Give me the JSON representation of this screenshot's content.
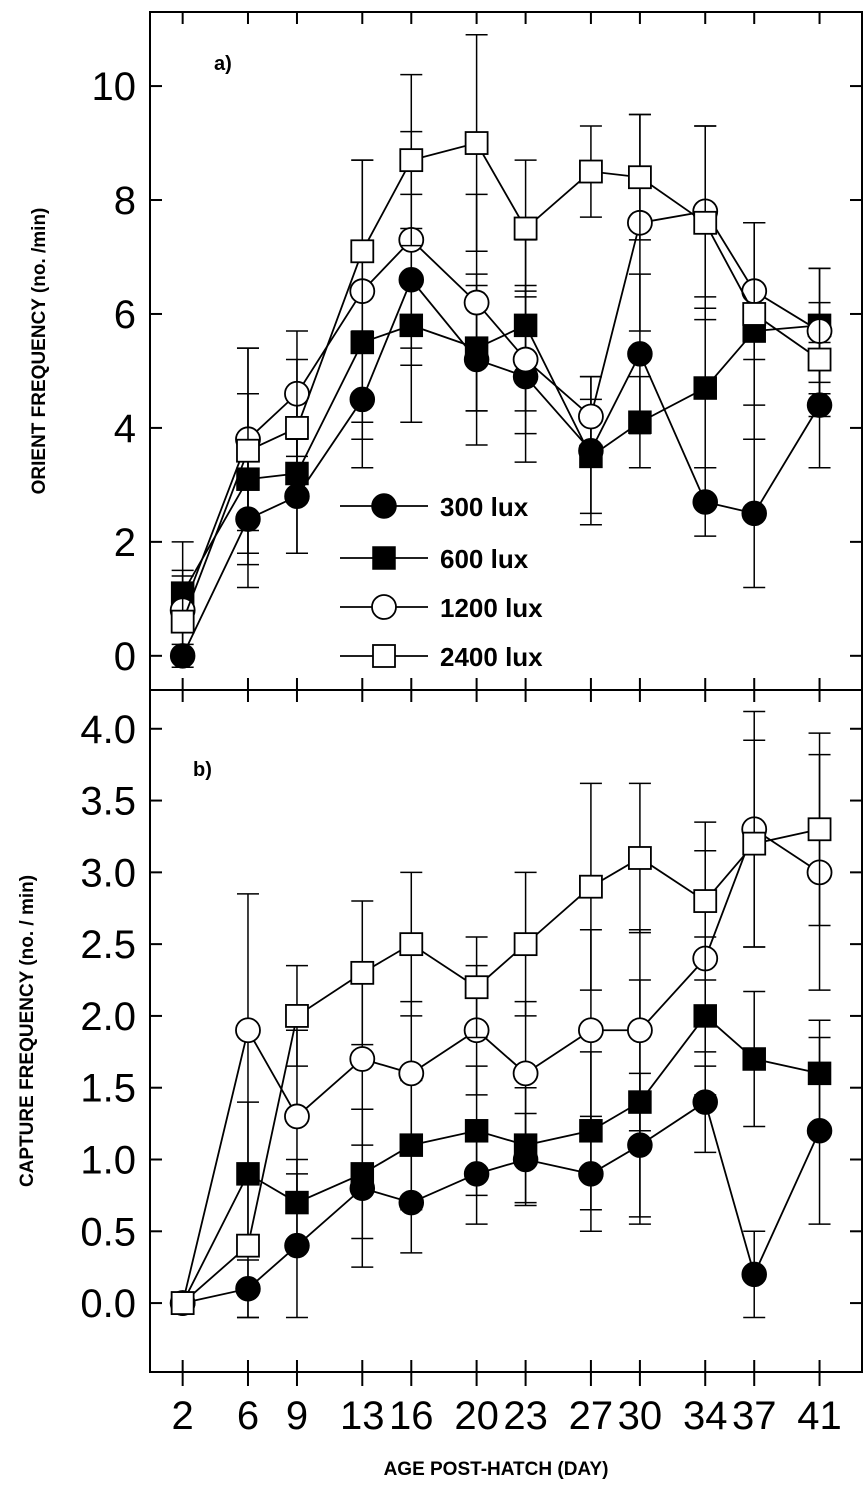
{
  "chart_data": [
    {
      "type": "line",
      "panel_label": "a)",
      "ylabel": "ORIENT FREQUENCY (no. /min)",
      "xlabel": "",
      "ylim": [
        -0.6,
        11.3
      ],
      "yticks": [
        0,
        2,
        4,
        6,
        8,
        10
      ],
      "x": [
        2,
        6,
        9,
        13,
        16,
        20,
        23,
        27,
        30,
        34,
        37,
        41
      ],
      "legend": "center-left, inside",
      "series": [
        {
          "name": "300 lux",
          "marker": "filled-circle",
          "values": [
            0.0,
            2.4,
            2.8,
            4.5,
            6.6,
            5.2,
            4.9,
            3.6,
            5.3,
            2.7,
            2.5,
            4.4
          ],
          "err": [
            0.0,
            1.2,
            1.0,
            1.2,
            1.5,
            1.5,
            1.5,
            1.3,
            1.4,
            0.6,
            1.3,
            1.1
          ]
        },
        {
          "name": "600 lux",
          "marker": "filled-square",
          "values": [
            1.1,
            3.1,
            3.2,
            5.5,
            5.8,
            5.4,
            5.8,
            3.5,
            4.1,
            4.7,
            5.7,
            5.8
          ],
          "err": [
            0.9,
            1.5,
            1.4,
            1.7,
            1.7,
            1.1,
            1.5,
            1.0,
            0.8,
            1.4,
            1.9,
            1.0
          ]
        },
        {
          "name": "1200 lux",
          "marker": "open-circle",
          "values": [
            0.8,
            3.8,
            4.6,
            6.4,
            7.3,
            6.2,
            5.2,
            4.2,
            7.6,
            7.8,
            6.4,
            5.7
          ],
          "err": [
            0.7,
            1.6,
            1.1,
            2.3,
            1.9,
            1.9,
            1.3,
            0.7,
            1.9,
            1.5,
            1.2,
            1.1
          ]
        },
        {
          "name": "2400 lux",
          "marker": "open-square",
          "values": [
            0.6,
            3.6,
            4.0,
            7.1,
            8.7,
            9.0,
            7.5,
            8.5,
            8.4,
            7.6,
            6.0,
            5.2
          ],
          "err": [
            0.8,
            1.8,
            1.2,
            1.6,
            1.5,
            1.9,
            1.2,
            0.8,
            1.1,
            1.7,
            1.6,
            1.0
          ]
        }
      ]
    },
    {
      "type": "line",
      "panel_label": "b)",
      "ylabel": "CAPTURE FREQUENCY (no. / min)",
      "xlabel": "AGE POST-HATCH (DAY)",
      "ylim": [
        -0.48,
        4.27
      ],
      "yticks": [
        "0.0",
        "0.5",
        "1.0",
        "1.5",
        "2.0",
        "2.5",
        "3.0",
        "3.5",
        "4.0"
      ],
      "x": [
        2,
        6,
        9,
        13,
        16,
        20,
        23,
        27,
        30,
        34,
        37,
        41
      ],
      "xtick_labels": [
        "2",
        "6",
        "9",
        "13",
        "16",
        "20",
        "23",
        "27",
        "30",
        "34",
        "37",
        "41"
      ],
      "series": [
        {
          "name": "300 lux",
          "marker": "filled-circle",
          "values": [
            0.0,
            0.1,
            0.4,
            0.8,
            0.7,
            0.9,
            1.0,
            0.9,
            1.1,
            1.4,
            0.2,
            1.2
          ],
          "err": [
            0.0,
            0.2,
            0.5,
            0.55,
            0.35,
            0.35,
            0.32,
            0.4,
            0.5,
            0.35,
            0.3,
            0.65
          ]
        },
        {
          "name": "600 lux",
          "marker": "filled-square",
          "values": [
            0.0,
            0.9,
            0.7,
            0.9,
            1.1,
            1.2,
            1.1,
            1.2,
            1.4,
            2.0,
            1.7,
            1.6
          ],
          "err": [
            0.0,
            0.5,
            0.3,
            0.45,
            0.45,
            0.45,
            0.4,
            0.55,
            0.85,
            0.55,
            0.47,
            0.37
          ]
        },
        {
          "name": "1200 lux",
          "marker": "open-circle",
          "values": [
            0.0,
            1.9,
            1.3,
            1.7,
            1.6,
            1.9,
            1.6,
            1.9,
            1.9,
            2.4,
            3.3,
            3.0
          ],
          "err": [
            0.0,
            0.95,
            0.6,
            0.6,
            0.5,
            0.45,
            0.5,
            0.7,
            0.7,
            0.75,
            0.82,
            0.82
          ]
        },
        {
          "name": "2400 lux",
          "marker": "open-square",
          "values": [
            0.0,
            0.4,
            2.0,
            2.3,
            2.5,
            2.2,
            2.5,
            2.9,
            3.1,
            2.8,
            3.2,
            3.3
          ],
          "err": [
            0.0,
            0.5,
            0.35,
            0.5,
            0.5,
            0.35,
            0.5,
            0.72,
            0.52,
            0.55,
            0.72,
            0.67
          ]
        }
      ]
    }
  ]
}
